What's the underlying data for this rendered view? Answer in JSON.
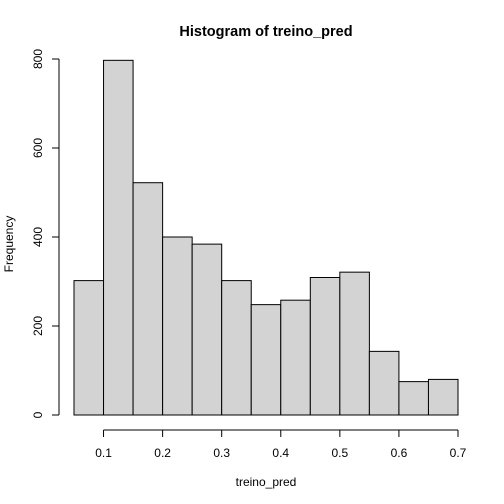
{
  "chart_data": {
    "type": "bar",
    "title": "Histogram of treino_pred",
    "xlabel": "treino_pred",
    "ylabel": "Frequency",
    "bin_edges": [
      0.05,
      0.1,
      0.15,
      0.2,
      0.25,
      0.3,
      0.35,
      0.4,
      0.45,
      0.5,
      0.55,
      0.6,
      0.65,
      0.7
    ],
    "values": [
      302,
      797,
      522,
      400,
      384,
      302,
      248,
      258,
      309,
      321,
      143,
      75,
      80
    ],
    "xlim": [
      0.05,
      0.7
    ],
    "ylim": [
      0,
      800
    ],
    "x_ticks": [
      0.1,
      0.2,
      0.3,
      0.4,
      0.5,
      0.6,
      0.7
    ],
    "x_tick_labels": [
      "0.1",
      "0.2",
      "0.3",
      "0.4",
      "0.5",
      "0.6",
      "0.7"
    ],
    "y_ticks": [
      0,
      200,
      400,
      600,
      800
    ],
    "y_tick_labels": [
      "0",
      "200",
      "400",
      "600",
      "800"
    ],
    "bar_fill": "#d3d3d3",
    "bar_stroke": "#000000",
    "grid": false
  }
}
